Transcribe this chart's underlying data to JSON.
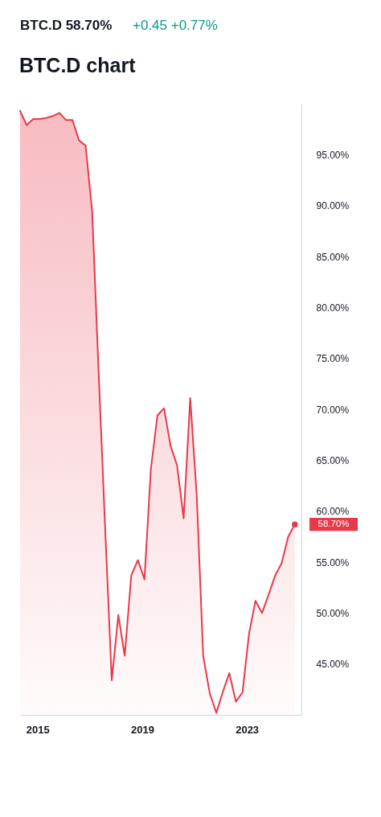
{
  "chart_data": {
    "type": "area",
    "title": "BTC.D chart",
    "annotations": [
      "BTC.D 58.70%",
      "+0.45 +0.77%",
      {
        "text": "58.70%",
        "x": "2024-11",
        "y": 58.7
      }
    ],
    "x": [
      "2014-05",
      "2014-08",
      "2014-11",
      "2015-02",
      "2015-05",
      "2015-08",
      "2015-11",
      "2016-02",
      "2016-05",
      "2016-08",
      "2016-11",
      "2017-02",
      "2017-05",
      "2017-08",
      "2017-11",
      "2018-02",
      "2018-05",
      "2018-08",
      "2018-11",
      "2019-02",
      "2019-05",
      "2019-08",
      "2019-11",
      "2020-02",
      "2020-05",
      "2020-08",
      "2020-11",
      "2021-02",
      "2021-05",
      "2021-08",
      "2021-11",
      "2022-02",
      "2022-05",
      "2022-08",
      "2022-11",
      "2023-02",
      "2023-05",
      "2023-08",
      "2023-11",
      "2024-02",
      "2024-05",
      "2024-08",
      "2024-11"
    ],
    "series": [
      {
        "color": "#e8394a",
        "values": [
          99.3,
          97.9,
          98.5,
          98.5,
          98.6,
          98.8,
          99.1,
          98.4,
          98.4,
          96.4,
          95.9,
          89.4,
          73.8,
          58.3,
          43.4,
          49.8,
          45.8,
          53.7,
          55.2,
          53.3,
          64.1,
          69.4,
          70.1,
          66.4,
          64.5,
          59.3,
          71.1,
          61.4,
          45.8,
          42.1,
          40.2,
          42.3,
          44.1,
          41.3,
          42.2,
          48.0,
          51.2,
          50.0,
          51.8,
          53.7,
          54.9,
          57.5,
          58.7
        ]
      }
    ],
    "xlim": [
      "2014-05",
      "2025-02"
    ],
    "xticks": [
      "2015",
      "2019",
      "2023"
    ],
    "ylim": [
      40,
      100
    ],
    "yticks": [
      {
        "value": 45,
        "label": "45.00%"
      },
      {
        "value": 50,
        "label": "50.00%"
      },
      {
        "value": 55,
        "label": "55.00%"
      },
      {
        "value": 60,
        "label": "60.00%"
      },
      {
        "value": 65,
        "label": "65.00%"
      },
      {
        "value": 70,
        "label": "70.00%"
      },
      {
        "value": 75,
        "label": "75.00%"
      },
      {
        "value": 80,
        "label": "80.00%"
      },
      {
        "value": 85,
        "label": "85.00%"
      },
      {
        "value": 90,
        "label": "90.00%"
      },
      {
        "value": 95,
        "label": "95.00%"
      }
    ],
    "line_style": "solid"
  }
}
